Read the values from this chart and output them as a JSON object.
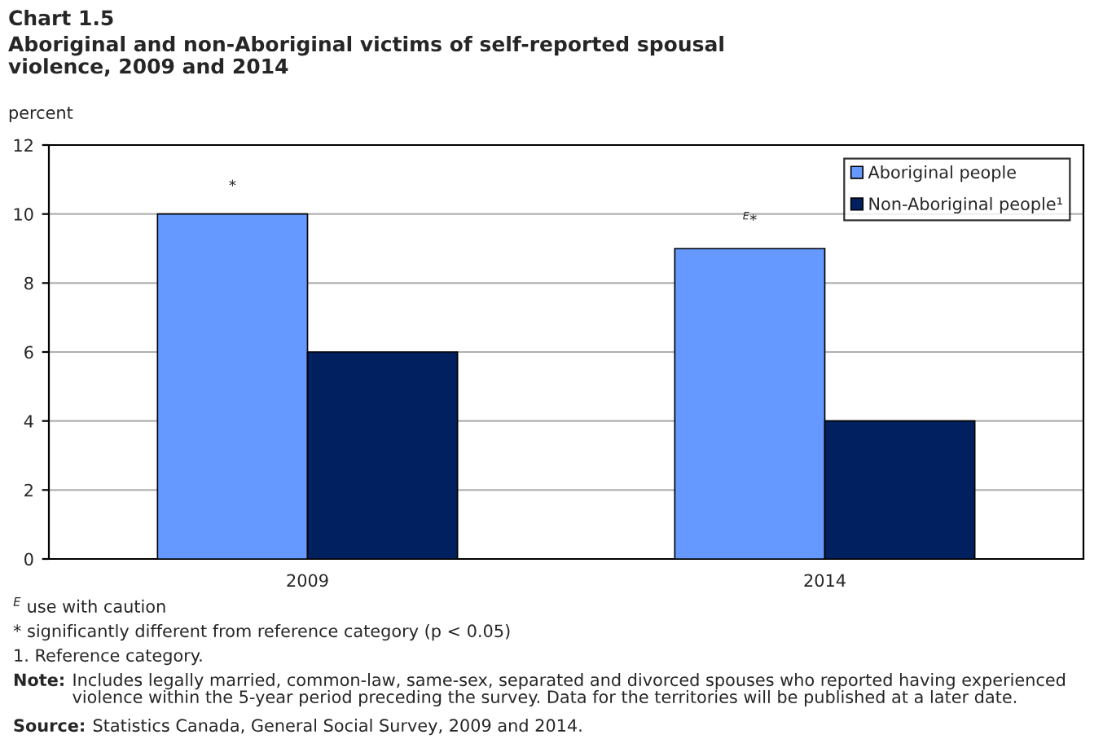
{
  "chart_data": {
    "type": "bar",
    "title": "Chart 1.5",
    "subtitle": "Aboriginal and non-Aboriginal victims of self-reported spousal\nviolence, 2009 and 2014",
    "ylabel": "percent",
    "categories": [
      "2009",
      "2014"
    ],
    "series": [
      {
        "name": "Aboriginal people",
        "color": "#6699ff",
        "values": [
          10,
          9
        ]
      },
      {
        "name": "Non-Aboriginal people¹",
        "color": "#002060",
        "values": [
          6,
          4
        ]
      }
    ],
    "ylim": [
      0,
      12
    ],
    "yticks": [
      0,
      2,
      4,
      6,
      8,
      10,
      12
    ],
    "grid": "y",
    "legend": "top right",
    "annotations": [
      "*",
      "$^{E}$*",
      "$^{E}$ use with caution",
      "* significantly different from reference category (p < 0.05)",
      "1. Reference category.",
      "Note: Includes legally married, common-law, same-sex, separated and divorced spouses who reported having experienced\nviolence within the 5-year period preceding the survey. Data for the territories will be published at a later date.",
      "Source: Statistics Canada, General Social Survey, 2009 and 2014."
    ]
  }
}
